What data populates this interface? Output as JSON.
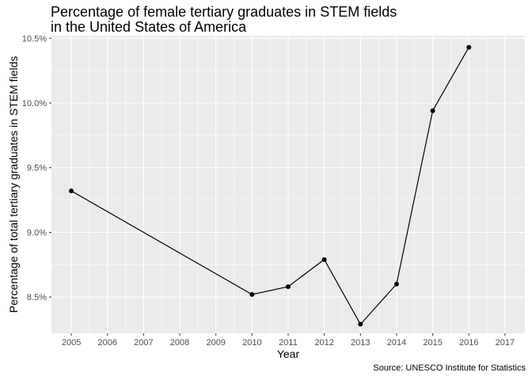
{
  "chart_data": {
    "type": "line",
    "title": "Percentage of female tertiary graduates in STEM fields\nin the United States of America",
    "title_lines": [
      "Percentage of female tertiary graduates in STEM fields",
      "in the United States of America"
    ],
    "xlabel": "Year",
    "ylabel": "Percentage of total tertiary graduates in STEM fields",
    "caption": "Source: UNESCO Institute for Statistics",
    "x_ticks": [
      "2005",
      "2006",
      "2007",
      "2008",
      "2009",
      "2010",
      "2011",
      "2012",
      "2013",
      "2014",
      "2015",
      "2016",
      "2017"
    ],
    "y_ticks": [
      {
        "value": 8.5,
        "label": "8.5%"
      },
      {
        "value": 9.0,
        "label": "9.0%"
      },
      {
        "value": 9.5,
        "label": "9.5%"
      },
      {
        "value": 10.0,
        "label": "10.0%"
      },
      {
        "value": 10.5,
        "label": "10.5%"
      }
    ],
    "xlim": [
      2004.45,
      2017.55
    ],
    "ylim": [
      8.22,
      10.52
    ],
    "grid": true,
    "x": [
      2005,
      2010,
      2011,
      2012,
      2013,
      2014,
      2015,
      2016
    ],
    "y": [
      9.32,
      8.52,
      8.58,
      8.79,
      8.29,
      8.6,
      9.94,
      10.43
    ],
    "colors": {
      "panel": "#ebebeb",
      "grid": "#ffffff",
      "line": "#000000",
      "axis_text": "#4d4d4d"
    }
  }
}
